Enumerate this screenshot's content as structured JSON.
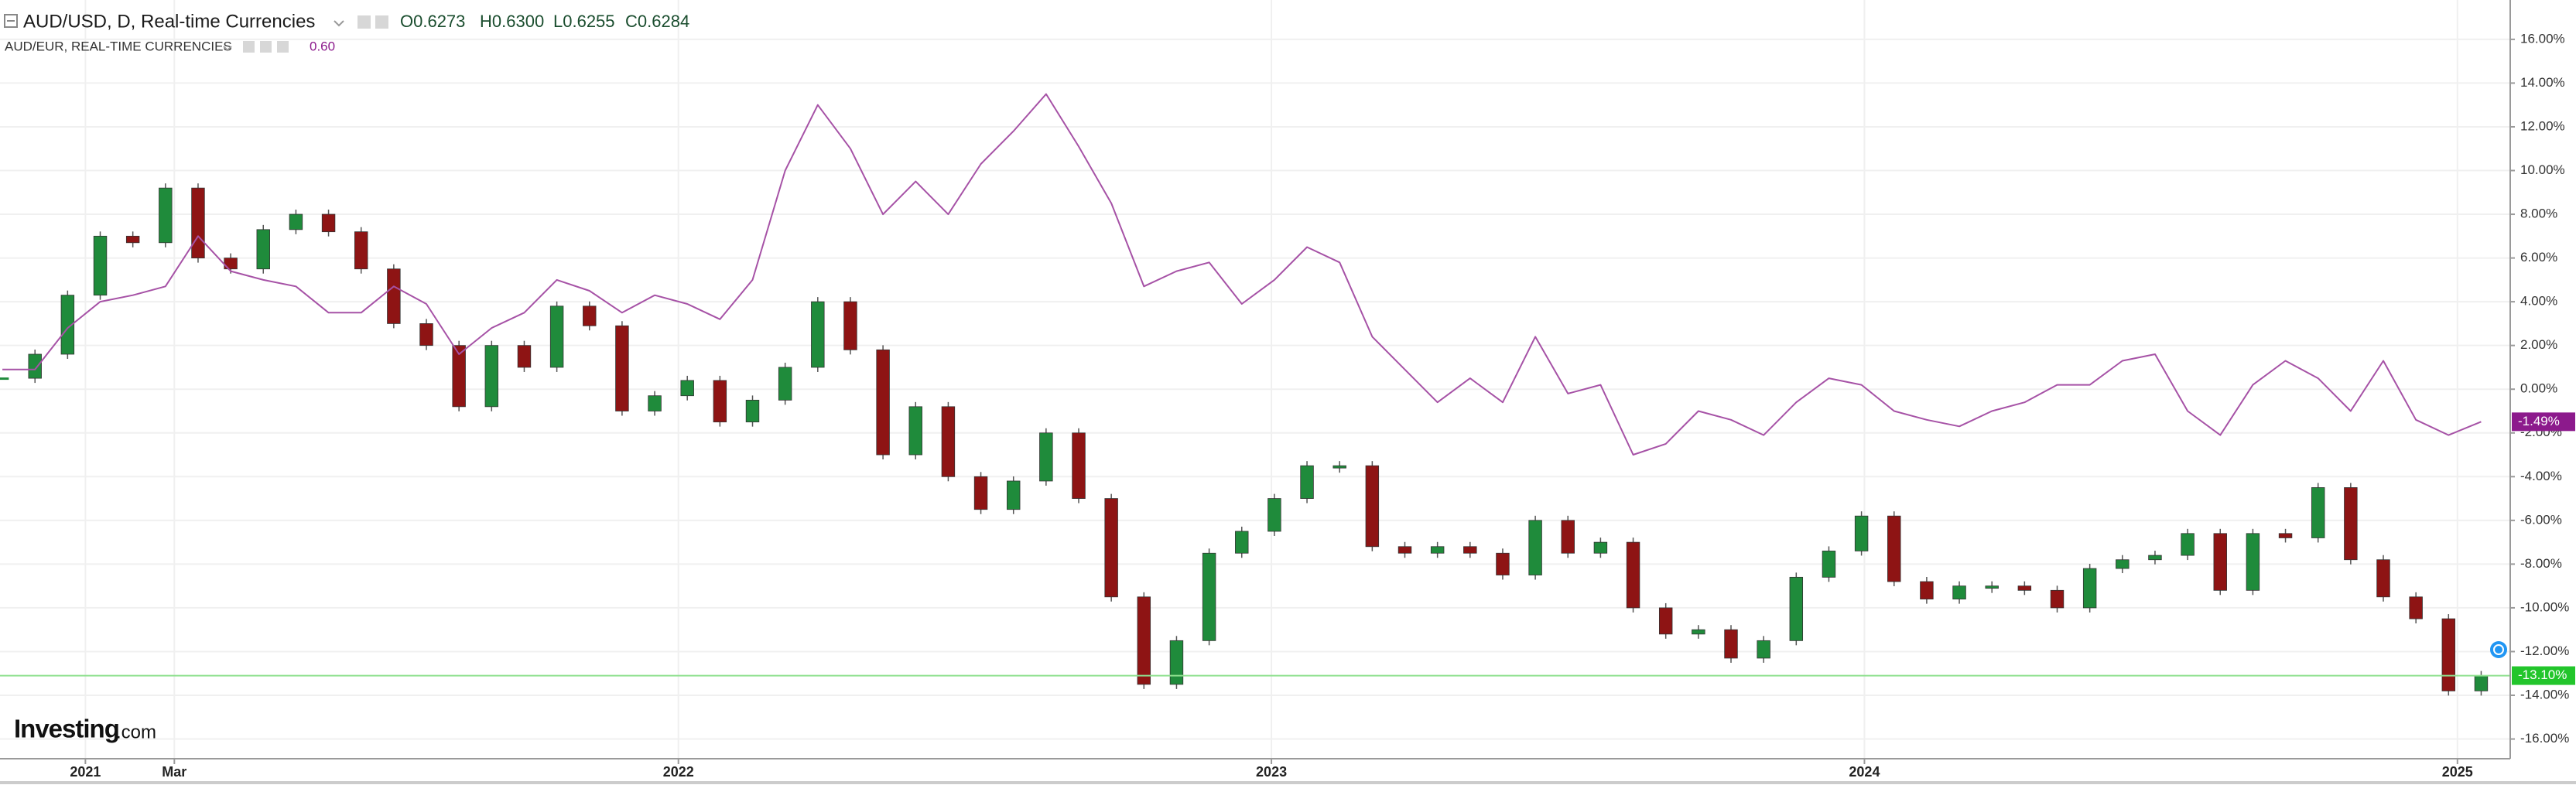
{
  "header": {
    "symbol": "AUD/USD, D, Real-time Currencies",
    "ohlc": [
      "O0.6273",
      "H0.6300",
      "L0.6255",
      "C0.6284"
    ],
    "compare_symbol": "AUD/EUR, REAL-TIME CURRENCIES",
    "compare_value": "0.60"
  },
  "logo": {
    "name": "Investing",
    "suffix": ".com"
  },
  "chart_data": {
    "type": "candlestick",
    "grid": true,
    "x": [
      2020.86,
      2020.915,
      2020.97,
      2021.025,
      2021.08,
      2021.135,
      2021.19,
      2021.245,
      2021.3,
      2021.355,
      2021.41,
      2021.465,
      2021.52,
      2021.575,
      2021.63,
      2021.685,
      2021.74,
      2021.795,
      2021.85,
      2021.905,
      2021.96,
      2022.015,
      2022.07,
      2022.125,
      2022.18,
      2022.235,
      2022.29,
      2022.345,
      2022.4,
      2022.455,
      2022.51,
      2022.565,
      2022.62,
      2022.675,
      2022.73,
      2022.785,
      2022.84,
      2022.895,
      2022.95,
      2023.005,
      2023.06,
      2023.115,
      2023.17,
      2023.225,
      2023.28,
      2023.335,
      2023.39,
      2023.445,
      2023.5,
      2023.555,
      2023.61,
      2023.665,
      2023.72,
      2023.775,
      2023.83,
      2023.885,
      2023.94,
      2023.995,
      2024.05,
      2024.105,
      2024.16,
      2024.215,
      2024.27,
      2024.325,
      2024.38,
      2024.435,
      2024.49,
      2024.545,
      2024.6,
      2024.655,
      2024.71,
      2024.765,
      2024.82,
      2024.875,
      2024.93,
      2024.985,
      2025.04
    ],
    "xlim": [
      2020.856,
      2025.089
    ],
    "xticks": [
      {
        "value": 2021,
        "label": "2021"
      },
      {
        "value": 2021.15,
        "label": "Mar"
      },
      2022,
      2023,
      2024,
      2025
    ],
    "ylim": [
      -16.9,
      17.8
    ],
    "yticks": [
      {
        "value": 16,
        "label": "16.00%"
      },
      {
        "value": 14,
        "label": "14.00%"
      },
      {
        "value": 12,
        "label": "12.00%"
      },
      {
        "value": 10,
        "label": "10.00%"
      },
      {
        "value": 8,
        "label": "8.00%"
      },
      {
        "value": 6,
        "label": "6.00%"
      },
      {
        "value": 4,
        "label": "4.00%"
      },
      {
        "value": 2,
        "label": "2.00%"
      },
      {
        "value": 0,
        "label": "0.00%"
      },
      {
        "value": -2,
        "label": "-2.00%"
      },
      {
        "value": -4,
        "label": "-4.00%"
      },
      {
        "value": -6,
        "label": "-6.00%"
      },
      {
        "value": -8,
        "label": "-8.00%"
      },
      {
        "value": -10,
        "label": "-10.00%"
      },
      {
        "value": -12,
        "label": "-12.00%"
      },
      {
        "value": -14,
        "label": "-14.00%"
      },
      {
        "value": -16,
        "label": "-16.00%"
      }
    ],
    "series": [
      {
        "type": "candlestick",
        "up_color": "#1f8b3b",
        "down_color": "#8e1414",
        "values": [
          0.5,
          1.6,
          4.3,
          7.0,
          6.7,
          9.2,
          6.0,
          5.5,
          7.3,
          8.0,
          7.2,
          5.5,
          3.0,
          2.0,
          -0.8,
          2.0,
          1.0,
          3.8,
          2.9,
          -1.0,
          -0.3,
          0.4,
          -1.5,
          -0.5,
          1.0,
          4.0,
          1.8,
          -3.0,
          -0.8,
          -4.0,
          -5.5,
          -4.2,
          -2.0,
          -5.0,
          -9.5,
          -13.5,
          -11.5,
          -7.5,
          -6.5,
          -5.0,
          -3.5,
          -3.5,
          -7.2,
          -7.5,
          -7.2,
          -7.5,
          -8.5,
          -6.0,
          -7.5,
          -7.0,
          -10.0,
          -11.2,
          -11.0,
          -12.3,
          -11.5,
          -8.6,
          -7.4,
          -5.8,
          -8.8,
          -9.6,
          -9.0,
          -9.0,
          -9.2,
          -10.0,
          -8.2,
          -7.8,
          -7.6,
          -6.6,
          -9.2,
          -6.6,
          -6.8,
          -4.5,
          -7.8,
          -9.5,
          -10.5,
          -13.8,
          -13.1
        ],
        "price_tag": {
          "value": -13.1,
          "label": "-13.10%",
          "color": "#22c52b"
        }
      },
      {
        "type": "line",
        "color": "#a652a6",
        "values": [
          0.9,
          0.9,
          2.8,
          4.0,
          4.3,
          4.7,
          7.0,
          5.4,
          5.0,
          4.7,
          3.5,
          3.5,
          4.7,
          3.9,
          1.6,
          2.8,
          3.5,
          5.0,
          4.5,
          3.5,
          4.3,
          3.9,
          3.2,
          5.0,
          10.0,
          13.0,
          11.0,
          8.0,
          9.5,
          8.0,
          10.3,
          11.8,
          13.5,
          11.1,
          8.5,
          4.7,
          5.4,
          5.8,
          3.9,
          5.0,
          6.5,
          5.8,
          2.4,
          0.9,
          -0.6,
          0.5,
          -0.6,
          2.4,
          -0.2,
          0.2,
          -3.0,
          -2.5,
          -1.0,
          -1.4,
          -2.1,
          -0.6,
          0.5,
          0.2,
          -1.0,
          -1.4,
          -1.7,
          -1.0,
          -0.6,
          0.2,
          0.2,
          1.3,
          1.6,
          -1.0,
          -2.1,
          0.2,
          1.3,
          0.5,
          -1.0,
          1.3,
          -1.4,
          -2.1,
          -1.49
        ],
        "price_tag": {
          "value": -1.49,
          "label": "-1.49%",
          "color": "#8c1a8c"
        }
      }
    ]
  }
}
